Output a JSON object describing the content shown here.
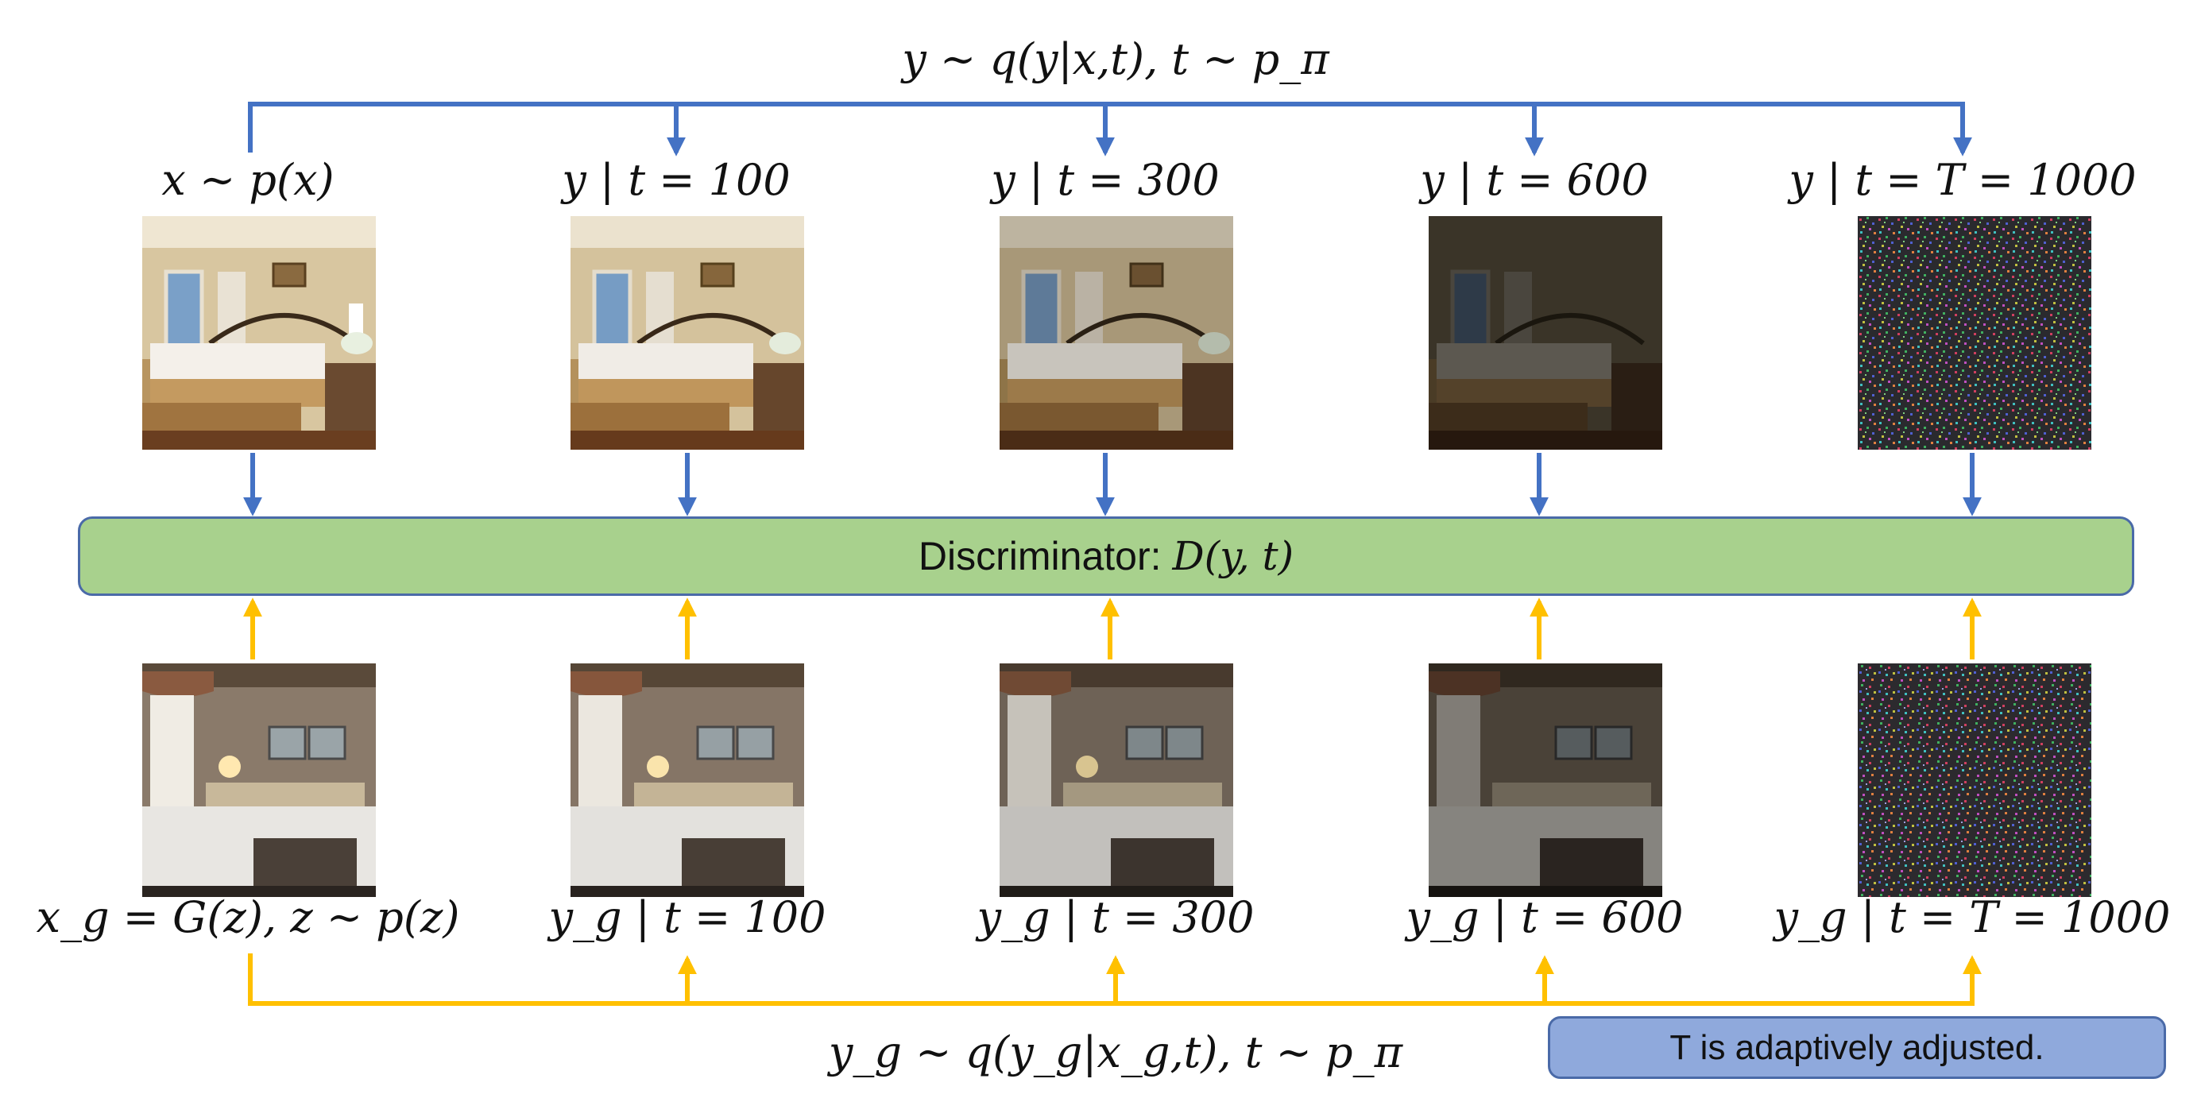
{
  "top_formula": "y ∼ q(y|x,t), t ∼ p_π",
  "bottom_formula": "y_g ∼ q(y_g|x_g,t), t ∼ p_π",
  "top_labels": [
    "x ∼ p(x)",
    "y | t = 100",
    "y | t = 300",
    "y | t = 600",
    "y | t = T = 1000"
  ],
  "bottom_labels": [
    "x_g = G(z), z ∼ p(z)",
    "y_g | t = 100",
    "y_g | t = 300",
    "y_g | t = 600",
    "y_g | t = T = 1000"
  ],
  "discriminator": {
    "label": "Discriminator:",
    "formula": "D(y, t)"
  },
  "note": "T is adaptively adjusted.",
  "colors": {
    "blue": "#4472c4",
    "orange": "#ffc000",
    "green": "#a8d18d",
    "note_fill": "#8fa9dc"
  },
  "thumbnails": {
    "top": [
      "real-bedroom-image",
      "noisy-real-t100",
      "noisy-real-t300",
      "noisy-real-t600",
      "pure-noise-real"
    ],
    "bottom": [
      "generated-bedroom-image",
      "noisy-generated-t100",
      "noisy-generated-t300",
      "noisy-generated-t600",
      "pure-noise-generated"
    ]
  }
}
